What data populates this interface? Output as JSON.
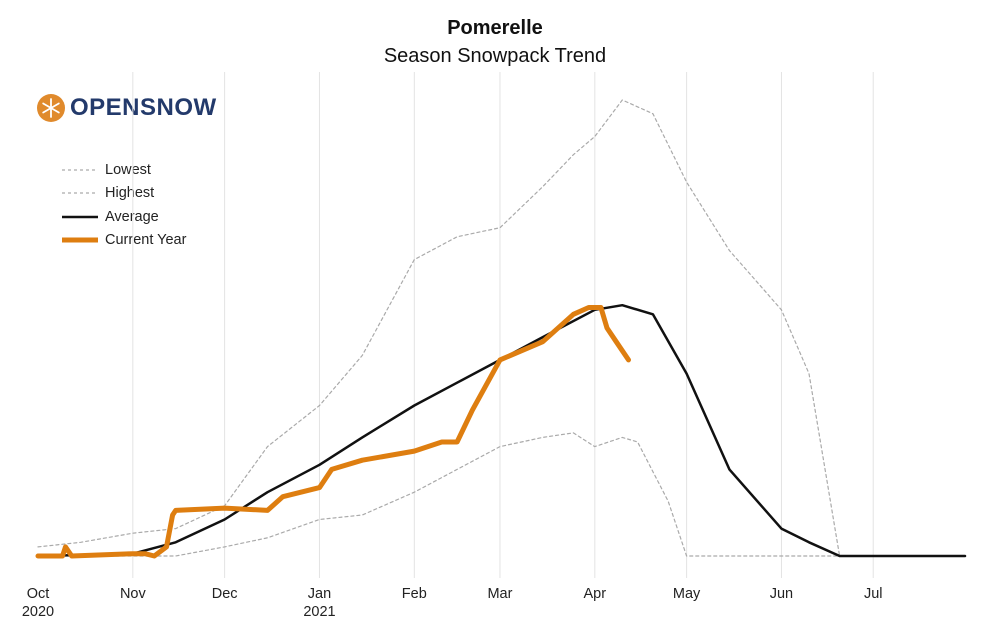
{
  "logo": {
    "text_open": "OPEN",
    "text_snow": "SNOW"
  },
  "chart_data": {
    "type": "line",
    "title": "Pomerelle",
    "subtitle": "Season Snowpack Trend",
    "xlabel": "",
    "ylabel": "",
    "x_start": "2020-10-01",
    "x_end": "2021-07-31",
    "ylim": [
      0,
      100
    ],
    "grid": "vertical",
    "legend_position": "top-left",
    "x_ticks": [
      {
        "date": "2020-10-01",
        "label": "Oct",
        "sublabel": "2020"
      },
      {
        "date": "2020-11-01",
        "label": "Nov",
        "sublabel": ""
      },
      {
        "date": "2020-12-01",
        "label": "Dec",
        "sublabel": ""
      },
      {
        "date": "2021-01-01",
        "label": "Jan",
        "sublabel": "2021"
      },
      {
        "date": "2021-02-01",
        "label": "Feb",
        "sublabel": ""
      },
      {
        "date": "2021-03-01",
        "label": "Mar",
        "sublabel": ""
      },
      {
        "date": "2021-04-01",
        "label": "Apr",
        "sublabel": ""
      },
      {
        "date": "2021-05-01",
        "label": "May",
        "sublabel": ""
      },
      {
        "date": "2021-06-01",
        "label": "Jun",
        "sublabel": ""
      },
      {
        "date": "2021-07-01",
        "label": "Jul",
        "sublabel": ""
      }
    ],
    "series": [
      {
        "name": "Lowest",
        "color": "#aaaaaa",
        "style": "dashed",
        "points": [
          [
            "2020-10-01",
            0
          ],
          [
            "2020-10-15",
            0
          ],
          [
            "2020-11-01",
            0
          ],
          [
            "2020-11-15",
            0
          ],
          [
            "2020-12-01",
            2
          ],
          [
            "2020-12-15",
            4
          ],
          [
            "2021-01-01",
            8
          ],
          [
            "2021-01-15",
            9
          ],
          [
            "2021-02-01",
            14
          ],
          [
            "2021-02-15",
            19
          ],
          [
            "2021-03-01",
            24
          ],
          [
            "2021-03-15",
            26
          ],
          [
            "2021-03-25",
            27
          ],
          [
            "2021-04-01",
            24
          ],
          [
            "2021-04-10",
            26
          ],
          [
            "2021-04-15",
            25
          ],
          [
            "2021-04-25",
            12
          ],
          [
            "2021-05-01",
            0
          ],
          [
            "2021-06-20",
            0
          ],
          [
            "2021-07-31",
            0
          ]
        ]
      },
      {
        "name": "Highest",
        "color": "#aaaaaa",
        "style": "dashed",
        "points": [
          [
            "2020-10-01",
            2
          ],
          [
            "2020-10-15",
            3
          ],
          [
            "2020-11-01",
            5
          ],
          [
            "2020-11-15",
            6
          ],
          [
            "2020-12-01",
            11
          ],
          [
            "2020-12-15",
            24
          ],
          [
            "2021-01-01",
            33
          ],
          [
            "2021-01-15",
            44
          ],
          [
            "2021-02-01",
            65
          ],
          [
            "2021-02-15",
            70
          ],
          [
            "2021-03-01",
            72
          ],
          [
            "2021-03-15",
            81
          ],
          [
            "2021-03-25",
            88
          ],
          [
            "2021-04-01",
            92
          ],
          [
            "2021-04-10",
            100
          ],
          [
            "2021-04-20",
            97
          ],
          [
            "2021-05-01",
            82
          ],
          [
            "2021-05-15",
            67
          ],
          [
            "2021-06-01",
            54
          ],
          [
            "2021-06-10",
            40
          ],
          [
            "2021-06-20",
            0
          ],
          [
            "2021-07-31",
            0
          ]
        ]
      },
      {
        "name": "Average",
        "color": "#111111",
        "style": "solid",
        "points": [
          [
            "2020-10-01",
            0
          ],
          [
            "2020-11-01",
            0.5
          ],
          [
            "2020-11-15",
            3
          ],
          [
            "2020-12-01",
            8
          ],
          [
            "2020-12-15",
            14
          ],
          [
            "2021-01-01",
            20
          ],
          [
            "2021-01-15",
            26
          ],
          [
            "2021-02-01",
            33
          ],
          [
            "2021-02-15",
            38
          ],
          [
            "2021-03-01",
            43
          ],
          [
            "2021-03-15",
            48
          ],
          [
            "2021-04-01",
            54
          ],
          [
            "2021-04-10",
            55
          ],
          [
            "2021-04-20",
            53
          ],
          [
            "2021-05-01",
            40
          ],
          [
            "2021-05-15",
            19
          ],
          [
            "2021-06-01",
            6
          ],
          [
            "2021-06-10",
            3
          ],
          [
            "2021-06-20",
            0
          ],
          [
            "2021-07-31",
            0
          ]
        ]
      },
      {
        "name": "Current Year",
        "color": "#de7e10",
        "style": "solid",
        "points": [
          [
            "2020-10-01",
            0
          ],
          [
            "2020-10-09",
            0
          ],
          [
            "2020-10-10",
            2
          ],
          [
            "2020-10-12",
            0
          ],
          [
            "2020-11-01",
            0.5
          ],
          [
            "2020-11-05",
            0.5
          ],
          [
            "2020-11-08",
            0
          ],
          [
            "2020-11-12",
            2
          ],
          [
            "2020-11-14",
            9
          ],
          [
            "2020-11-15",
            10
          ],
          [
            "2020-12-01",
            10.5
          ],
          [
            "2020-12-15",
            10
          ],
          [
            "2020-12-20",
            13
          ],
          [
            "2021-01-01",
            15
          ],
          [
            "2021-01-05",
            19
          ],
          [
            "2021-01-15",
            21
          ],
          [
            "2021-02-01",
            23
          ],
          [
            "2021-02-10",
            25
          ],
          [
            "2021-02-15",
            25
          ],
          [
            "2021-02-20",
            32
          ],
          [
            "2021-03-01",
            43
          ],
          [
            "2021-03-15",
            47
          ],
          [
            "2021-03-25",
            53
          ],
          [
            "2021-03-30",
            54.5
          ],
          [
            "2021-04-03",
            54.5
          ],
          [
            "2021-04-05",
            50
          ],
          [
            "2021-04-08",
            47
          ],
          [
            "2021-04-12",
            43
          ]
        ]
      }
    ]
  }
}
